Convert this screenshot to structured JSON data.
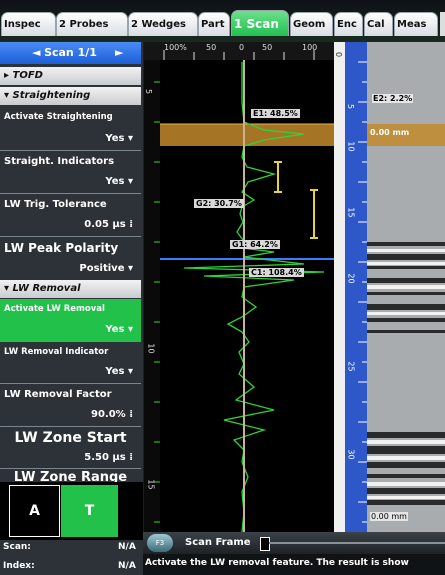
{
  "tabs": [
    {
      "label": "Inspec",
      "active": false
    },
    {
      "label": "2 Probes",
      "active": false
    },
    {
      "label": "2 Wedges",
      "active": false
    },
    {
      "label": "Part",
      "active": false
    },
    {
      "label": "1 Scan",
      "active": true
    },
    {
      "label": "Geom",
      "active": false
    },
    {
      "label": "Enc",
      "active": false
    },
    {
      "label": "Cal",
      "active": false
    },
    {
      "label": "Meas",
      "active": false
    }
  ],
  "left_panel": {
    "scan_title": "Scan 1/1",
    "groups": {
      "tofd": "TOFD",
      "straightening": "Straightening",
      "lw_removal": "LW Removal"
    },
    "fields": {
      "activate_straightening": {
        "label": "Activate Straightening",
        "value": "Yes"
      },
      "straight_indicators": {
        "label": "Straight. Indicators",
        "value": "Yes"
      },
      "lw_trig_tolerance": {
        "label": "LW Trig. Tolerance",
        "value": "0.05 µs"
      },
      "lw_peak_polarity": {
        "label": "LW Peak Polarity",
        "value": "Positive"
      },
      "activate_lw_removal": {
        "label": "Activate LW Removal",
        "value": "Yes"
      },
      "lw_removal_indicator": {
        "label": "LW Removal Indicator",
        "value": "Yes"
      },
      "lw_removal_factor": {
        "label": "LW Removal Factor",
        "value": "90.0%"
      },
      "lw_zone_start": {
        "label": "LW Zone Start",
        "value": "5.50 µs"
      },
      "lw_zone_range": {
        "label": "LW Zone Range",
        "value": ""
      }
    },
    "mode_box": {
      "a": "A",
      "t": "T"
    },
    "scan_label": "Scan:",
    "scan_value": "N/A",
    "index_label": "Index:",
    "index_value": "N/A"
  },
  "ascan": {
    "ruler_labels": [
      "100%",
      "50",
      "0",
      "50",
      "100"
    ],
    "depth_labels": [
      "5",
      "10",
      "15"
    ],
    "gates": [
      {
        "label": "E1: 48.5%"
      },
      {
        "label": "G2: 30.7%"
      },
      {
        "label": "G1: 64.2%"
      },
      {
        "label": "C1: 108.4%"
      }
    ],
    "colors": {
      "signal": "#2fd23a",
      "gate_band": "#c28a2c",
      "cursor": "#c8b493"
    }
  },
  "bscan": {
    "depth_labels": [
      "0",
      "5",
      "10",
      "15",
      "20",
      "25",
      "30"
    ],
    "e2_label": "E2: 2.2%",
    "mm_top": "0.00 mm",
    "mm_bottom": "0.00 mm"
  },
  "status": {
    "scan_frame": "Scan Frame",
    "f_key": "F3",
    "message": "Activate the LW removal feature. The result is show"
  }
}
